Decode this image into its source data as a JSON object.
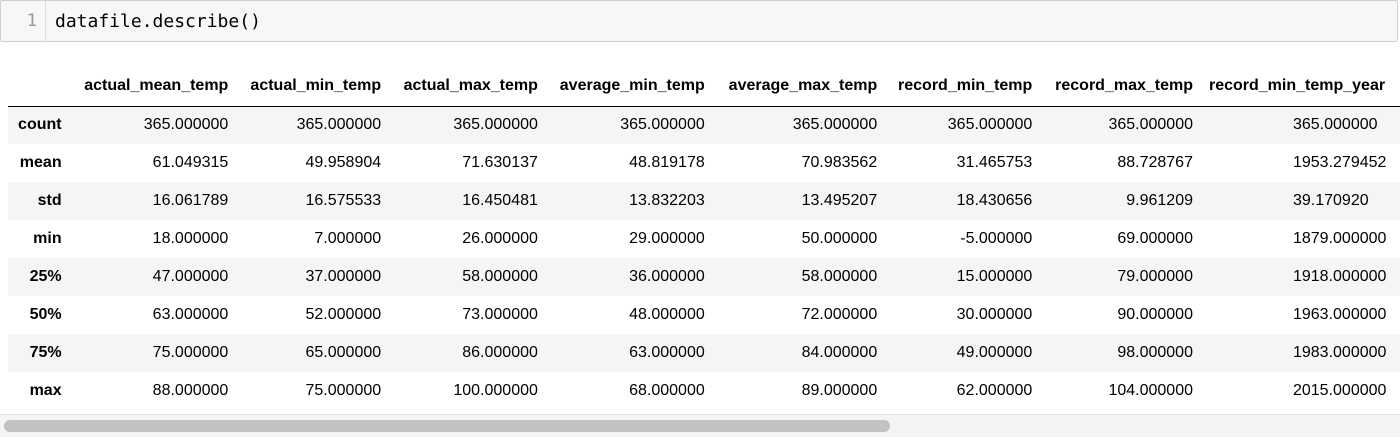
{
  "cell": {
    "line_number": "1",
    "code": "datafile.describe()"
  },
  "table": {
    "columns": [
      "actual_mean_temp",
      "actual_min_temp",
      "actual_max_temp",
      "average_min_temp",
      "average_max_temp",
      "record_min_temp",
      "record_max_temp",
      "record_min_temp_year"
    ],
    "rows": [
      {
        "label": "count",
        "values": [
          "365.000000",
          "365.000000",
          "365.000000",
          "365.000000",
          "365.000000",
          "365.000000",
          "365.000000",
          "365.000000"
        ]
      },
      {
        "label": "mean",
        "values": [
          "61.049315",
          "49.958904",
          "71.630137",
          "48.819178",
          "70.983562",
          "31.465753",
          "88.728767",
          "1953.279452"
        ]
      },
      {
        "label": "std",
        "values": [
          "16.061789",
          "16.575533",
          "16.450481",
          "13.832203",
          "13.495207",
          "18.430656",
          "9.961209",
          "39.170920"
        ]
      },
      {
        "label": "min",
        "values": [
          "18.000000",
          "7.000000",
          "26.000000",
          "29.000000",
          "50.000000",
          "-5.000000",
          "69.000000",
          "1879.000000"
        ]
      },
      {
        "label": "25%",
        "values": [
          "47.000000",
          "37.000000",
          "58.000000",
          "36.000000",
          "58.000000",
          "15.000000",
          "79.000000",
          "1918.000000"
        ]
      },
      {
        "label": "50%",
        "values": [
          "63.000000",
          "52.000000",
          "73.000000",
          "48.000000",
          "72.000000",
          "30.000000",
          "90.000000",
          "1963.000000"
        ]
      },
      {
        "label": "75%",
        "values": [
          "75.000000",
          "65.000000",
          "86.000000",
          "63.000000",
          "84.000000",
          "49.000000",
          "98.000000",
          "1983.000000"
        ]
      },
      {
        "label": "max",
        "values": [
          "88.000000",
          "75.000000",
          "100.000000",
          "68.000000",
          "89.000000",
          "62.000000",
          "104.000000",
          "2015.000000"
        ]
      }
    ]
  },
  "scrollbar": {
    "horizontal_position_fraction": 0.0,
    "visible_fraction": 0.63
  }
}
